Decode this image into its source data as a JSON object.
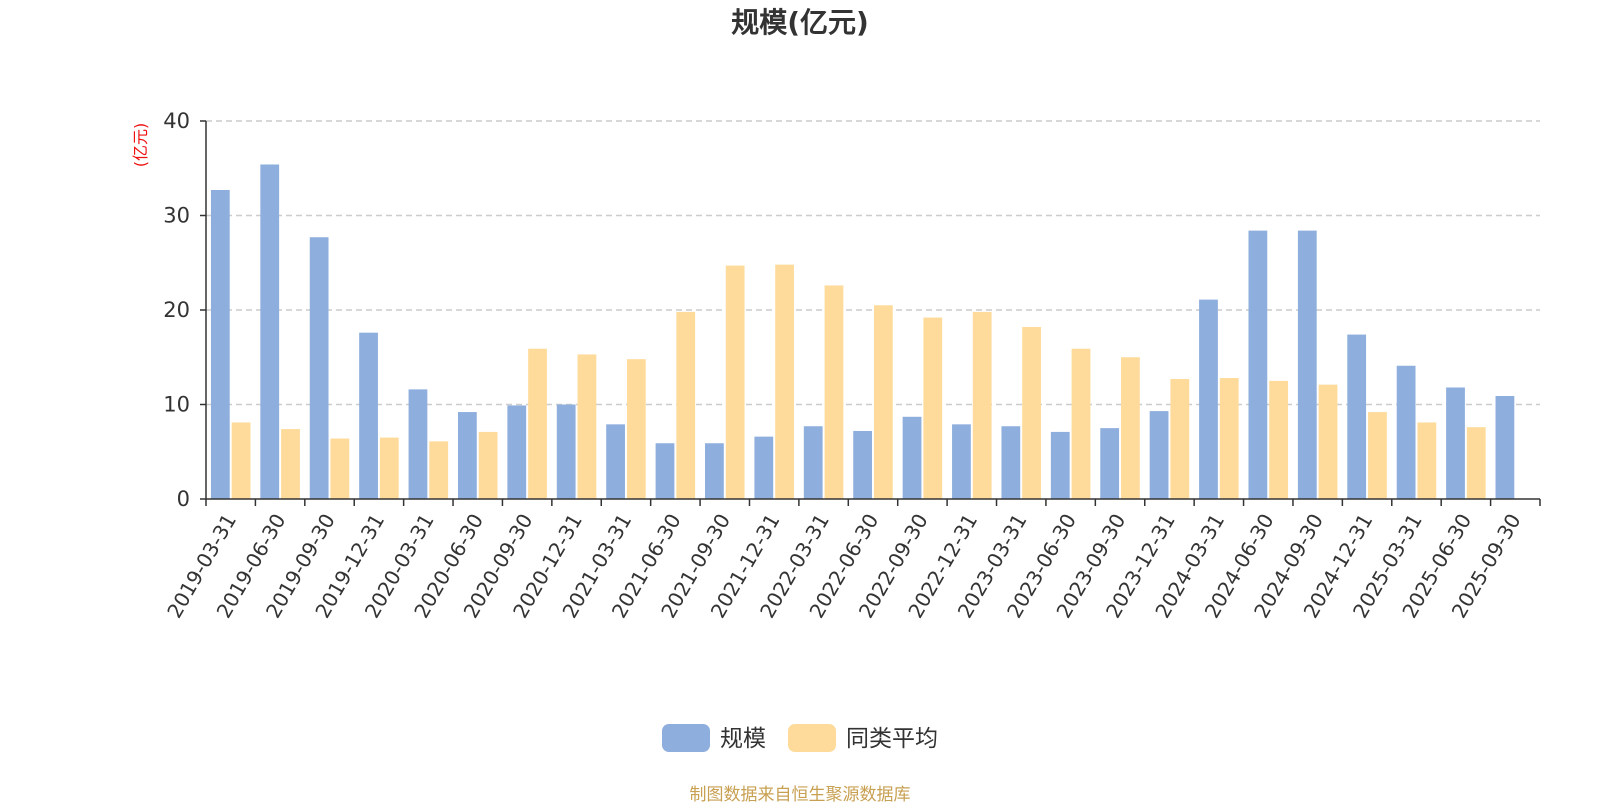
{
  "chart_data": {
    "type": "bar",
    "title": "规模(亿元)",
    "y_unit_label": "(亿元)",
    "categories": [
      "2019-03-31",
      "2019-06-30",
      "2019-09-30",
      "2019-12-31",
      "2020-03-31",
      "2020-06-30",
      "2020-09-30",
      "2020-12-31",
      "2021-03-31",
      "2021-06-30",
      "2021-09-30",
      "2021-12-31",
      "2022-03-31",
      "2022-06-30",
      "2022-09-30",
      "2022-12-31",
      "2023-03-31",
      "2023-06-30",
      "2023-09-30",
      "2023-12-31",
      "2024-03-31",
      "2024-06-30",
      "2024-09-30",
      "2024-12-31",
      "2025-03-31",
      "2025-06-30",
      "2025-09-30"
    ],
    "series": [
      {
        "name": "规模",
        "color": "#8eaedd",
        "values": [
          32.7,
          35.4,
          27.7,
          17.6,
          11.6,
          9.2,
          9.9,
          10.0,
          7.9,
          5.9,
          5.9,
          6.6,
          7.7,
          7.2,
          8.7,
          7.9,
          7.7,
          7.1,
          7.5,
          9.3,
          21.1,
          28.4,
          28.4,
          17.4,
          14.1,
          11.8,
          10.9
        ]
      },
      {
        "name": "同类平均",
        "color": "#fedb9a",
        "values": [
          8.1,
          7.4,
          6.4,
          6.5,
          6.1,
          7.1,
          15.9,
          15.3,
          14.8,
          19.8,
          24.7,
          24.8,
          22.6,
          20.5,
          19.2,
          19.8,
          18.2,
          15.9,
          15.0,
          12.7,
          12.8,
          12.5,
          12.1,
          9.2,
          8.1,
          7.6,
          null
        ]
      }
    ],
    "ylim": [
      0,
      40
    ],
    "yticks": [
      0,
      10,
      20,
      30,
      40
    ],
    "grid": true,
    "legend_position": "bottom-center"
  },
  "footer": {
    "source": "制图数据来自恒生聚源数据库"
  }
}
